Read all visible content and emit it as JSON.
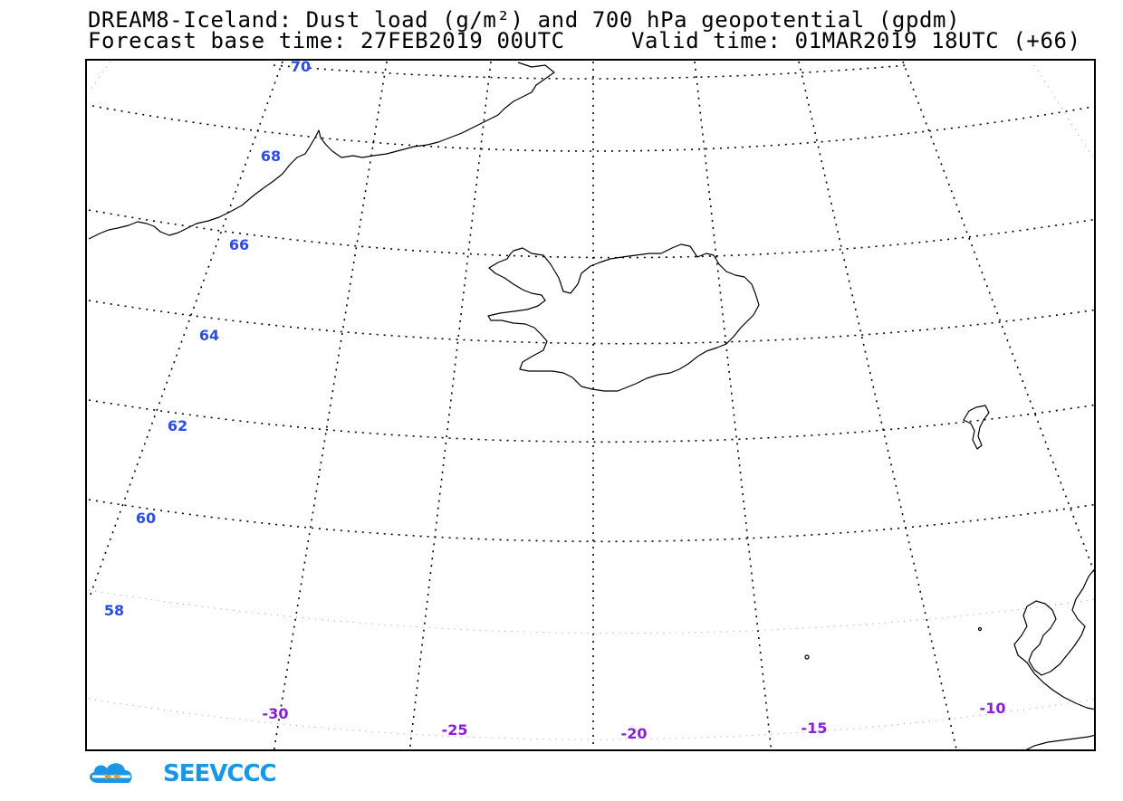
{
  "title_line1": "DREAM8-Iceland: Dust load (g/m²) and 700 hPa geopotential (gpdm)",
  "title_base": "Forecast base time: 27FEB2019 00UTC",
  "title_valid": "Valid time: 01MAR2019 18UTC (+66)",
  "lat_labels": [
    "70",
    "68",
    "66",
    "64",
    "62",
    "60",
    "58"
  ],
  "lon_labels": [
    "-30",
    "-25",
    "-20",
    "-15",
    "-10"
  ],
  "colors": {
    "lat_label": "#2a4de6",
    "lon_label": "#8a1fd6",
    "coast": "#000000",
    "logo": "#1996e6"
  },
  "logo": {
    "text": "SEEVCCC"
  },
  "regions": [
    "Greenland",
    "Iceland",
    "Faroe Islands",
    "Scotland"
  ]
}
